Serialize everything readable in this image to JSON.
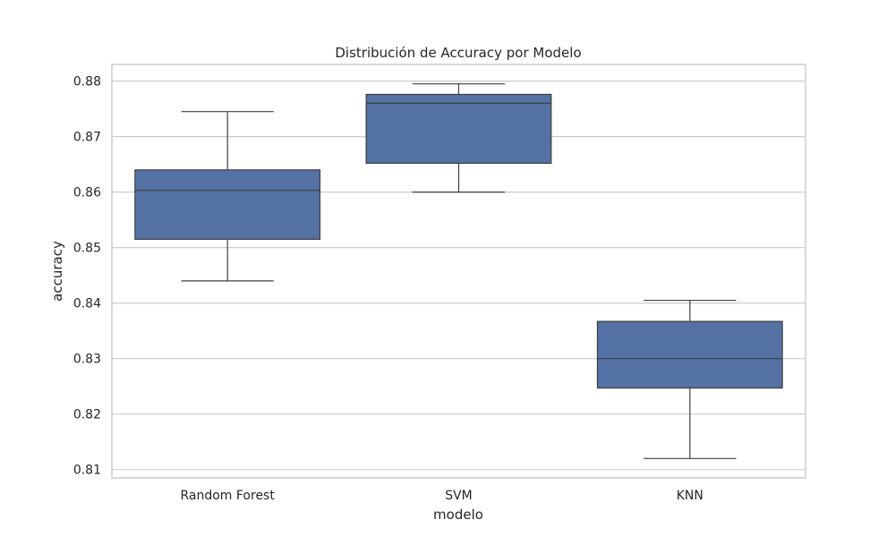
{
  "chart_data": {
    "type": "box",
    "title": "Distribución de Accuracy por Modelo",
    "xlabel": "modelo",
    "ylabel": "accuracy",
    "ylim": [
      0.8085,
      0.883
    ],
    "yticks": [
      0.81,
      0.82,
      0.83,
      0.84,
      0.85,
      0.86,
      0.87,
      0.88
    ],
    "ytick_labels": [
      "0.81",
      "0.82",
      "0.83",
      "0.84",
      "0.85",
      "0.86",
      "0.87",
      "0.88"
    ],
    "grid": true,
    "box_color": "#5572a5",
    "categories": [
      "Random Forest",
      "SVM",
      "KNN"
    ],
    "boxes": [
      {
        "category": "Random Forest",
        "whisker_low": 0.844,
        "q1": 0.8515,
        "median": 0.8603,
        "q3": 0.864,
        "whisker_high": 0.8745
      },
      {
        "category": "SVM",
        "whisker_low": 0.86,
        "q1": 0.8652,
        "median": 0.876,
        "q3": 0.8776,
        "whisker_high": 0.8795
      },
      {
        "category": "KNN",
        "whisker_low": 0.812,
        "q1": 0.8247,
        "median": 0.83,
        "q3": 0.8367,
        "whisker_high": 0.8405
      }
    ]
  }
}
